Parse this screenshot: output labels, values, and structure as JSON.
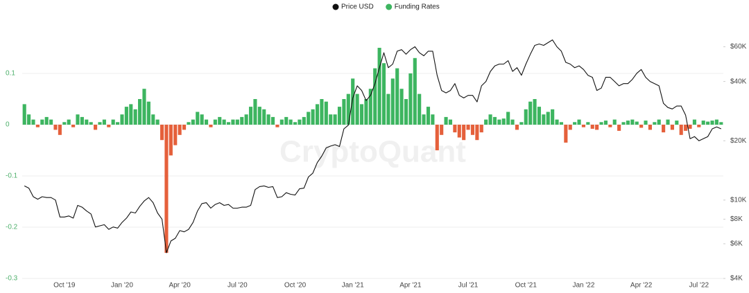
{
  "chart_data": {
    "type": "bar",
    "watermark": "CryptoQuant",
    "categories": [
      null,
      null,
      null,
      null,
      null,
      null,
      null,
      null,
      null,
      "Oct '19",
      null,
      null,
      null,
      null,
      null,
      null,
      null,
      null,
      null,
      null,
      null,
      null,
      "Jan '20",
      null,
      null,
      null,
      null,
      null,
      null,
      null,
      null,
      null,
      null,
      null,
      null,
      "Apr '20",
      null,
      null,
      null,
      null,
      null,
      null,
      null,
      null,
      null,
      null,
      null,
      null,
      "Jul '20",
      null,
      null,
      null,
      null,
      null,
      null,
      null,
      null,
      null,
      null,
      null,
      null,
      "Oct '20",
      null,
      null,
      null,
      null,
      null,
      null,
      null,
      null,
      null,
      null,
      null,
      null,
      "Jan '21",
      null,
      null,
      null,
      null,
      null,
      null,
      null,
      null,
      null,
      null,
      null,
      null,
      "Apr '21",
      null,
      null,
      null,
      null,
      null,
      null,
      null,
      null,
      null,
      null,
      null,
      null,
      "Jul '21",
      null,
      null,
      null,
      null,
      null,
      null,
      null,
      null,
      null,
      null,
      null,
      null,
      "Oct '21",
      null,
      null,
      null,
      null,
      null,
      null,
      null,
      null,
      null,
      null,
      null,
      null,
      "Jan '22",
      null,
      null,
      null,
      null,
      null,
      null,
      null,
      null,
      null,
      null,
      null,
      null,
      "Apr '22",
      null,
      null,
      null,
      null,
      null,
      null,
      null,
      null,
      null,
      null,
      null,
      null,
      "Jul '22",
      null,
      null,
      null,
      null,
      null
    ],
    "series": [
      {
        "name": "Price USD",
        "type": "line",
        "axis": "y2",
        "color": "#111111",
        "values": [
          11800,
          11500,
          10400,
          10100,
          10400,
          10300,
          10300,
          10000,
          8200,
          8200,
          8300,
          8100,
          9400,
          9200,
          8800,
          8500,
          7300,
          7400,
          7500,
          7100,
          7300,
          7200,
          7700,
          8100,
          8700,
          8600,
          9300,
          9900,
          10300,
          9700,
          8600,
          8000,
          5400,
          6200,
          6400,
          7000,
          6900,
          7100,
          7700,
          8800,
          9600,
          9700,
          9100,
          9500,
          9700,
          9400,
          9500,
          9100,
          9100,
          9200,
          9200,
          9400,
          11300,
          11700,
          11800,
          11600,
          11700,
          10300,
          10400,
          10900,
          10700,
          10600,
          11400,
          11500,
          13100,
          13700,
          15500,
          16700,
          18400,
          18800,
          19100,
          18700,
          23000,
          24000,
          33000,
          38000,
          36000,
          32000,
          34000,
          39000,
          47000,
          56000,
          47000,
          49000,
          57000,
          58000,
          55000,
          58000,
          60000,
          56000,
          54000,
          57000,
          57000,
          43000,
          36000,
          35000,
          36000,
          39000,
          34000,
          33000,
          34000,
          34000,
          31500,
          38000,
          40000,
          45000,
          48000,
          49000,
          49000,
          51000,
          45000,
          47000,
          43000,
          49000,
          55000,
          61000,
          62000,
          61000,
          63000,
          65000,
          60000,
          57000,
          50000,
          49000,
          47000,
          48000,
          46000,
          43000,
          42000,
          36000,
          37000,
          42000,
          42000,
          40000,
          38000,
          39000,
          39000,
          41000,
          44000,
          46000,
          42000,
          40000,
          39000,
          38000,
          31000,
          29500,
          29000,
          30000,
          30000,
          27000,
          20500,
          21000,
          20000,
          20500,
          21000,
          23000,
          23500,
          23000
        ]
      },
      {
        "name": "Funding Rates",
        "type": "bar",
        "axis": "y",
        "color": "#3db560",
        "negative_color": "#e5603b",
        "values": [
          0.04,
          0.02,
          0.01,
          -0.005,
          0.01,
          0.015,
          0.01,
          -0.01,
          -0.02,
          0.005,
          0.01,
          -0.005,
          0.02,
          0.015,
          0.01,
          0.005,
          -0.01,
          0.005,
          0.01,
          -0.005,
          0.01,
          0.005,
          0.02,
          0.035,
          0.04,
          0.03,
          0.05,
          0.07,
          0.045,
          0.02,
          0.01,
          -0.03,
          -0.25,
          -0.06,
          -0.04,
          -0.02,
          -0.01,
          0.005,
          0.01,
          0.025,
          0.02,
          0.01,
          -0.005,
          0.01,
          0.015,
          0.01,
          0.005,
          0.01,
          0.01,
          0.015,
          0.02,
          0.035,
          0.05,
          0.035,
          0.03,
          0.02,
          0.015,
          -0.005,
          0.01,
          0.015,
          0.01,
          0.005,
          0.01,
          0.015,
          0.025,
          0.03,
          0.04,
          0.05,
          0.045,
          0.02,
          0.02,
          0.035,
          0.05,
          0.06,
          0.09,
          0.06,
          0.04,
          0.05,
          0.07,
          0.11,
          0.15,
          0.12,
          0.06,
          0.09,
          0.11,
          0.07,
          0.05,
          0.1,
          0.13,
          0.06,
          0.02,
          0.035,
          0.02,
          -0.05,
          -0.02,
          0.015,
          0.01,
          -0.015,
          -0.025,
          -0.03,
          -0.01,
          -0.02,
          -0.03,
          -0.015,
          0.01,
          0.02,
          0.015,
          0.01,
          0.012,
          0.025,
          0.01,
          -0.01,
          0.005,
          0.03,
          0.045,
          0.05,
          0.035,
          0.02,
          0.025,
          0.03,
          0.01,
          0.005,
          -0.035,
          -0.01,
          0.005,
          0.01,
          -0.005,
          0.005,
          -0.008,
          -0.01,
          0.005,
          0.008,
          -0.005,
          0.01,
          -0.012,
          0.005,
          0.008,
          0.01,
          0.006,
          -0.006,
          0.008,
          -0.01,
          0.005,
          0.01,
          -0.015,
          0.01,
          -0.01,
          0.008,
          -0.02,
          -0.012,
          -0.008,
          0.01,
          -0.005,
          0.008,
          0.006,
          0.008,
          0.01,
          0.005
        ]
      }
    ],
    "ylim": [
      -0.3,
      0.2
    ],
    "yticks": [
      0.1,
      0,
      -0.1,
      -0.2,
      -0.3
    ],
    "ytick_color": "#4caf6a",
    "y2lim": [
      4000,
      80000
    ],
    "y2log": true,
    "y2ticks": [
      {
        "value": 60000,
        "label": "$60K"
      },
      {
        "value": 40000,
        "label": "$40K"
      },
      {
        "value": 20000,
        "label": "$20K"
      },
      {
        "value": 10000,
        "label": "$10K"
      },
      {
        "value": 8000,
        "label": "$8K"
      },
      {
        "value": 6000,
        "label": "$6K"
      },
      {
        "value": 4000,
        "label": "$4K"
      }
    ],
    "grid": true,
    "legend": "top"
  }
}
